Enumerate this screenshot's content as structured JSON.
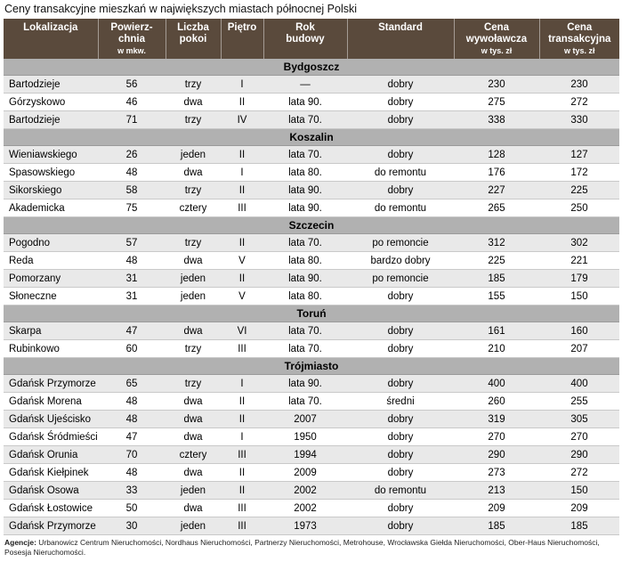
{
  "title": "Ceny transakcyjne mieszkań w największych miastach północnej Polski",
  "colors": {
    "header_bg": "#5a4a3c",
    "section_bg": "#b1b1b1",
    "row_alt_bg": "#e9e9e9",
    "row_bg": "#ffffff"
  },
  "columns": [
    {
      "lines": [
        "Lokalizacja"
      ],
      "sub": ""
    },
    {
      "lines": [
        "Powierz-",
        "chnia"
      ],
      "sub": "w mkw."
    },
    {
      "lines": [
        "Liczba",
        "pokoi"
      ],
      "sub": ""
    },
    {
      "lines": [
        "Piętro"
      ],
      "sub": ""
    },
    {
      "lines": [
        "Rok",
        "budowy"
      ],
      "sub": ""
    },
    {
      "lines": [
        "Standard"
      ],
      "sub": ""
    },
    {
      "lines": [
        "Cena",
        "wywoławcza"
      ],
      "sub": "w tys. zł"
    },
    {
      "lines": [
        "Cena",
        "transakcyjna"
      ],
      "sub": "w tys. zł"
    }
  ],
  "sections": [
    {
      "name": "Bydgoszcz",
      "rows": [
        [
          "Bartodzieje",
          "56",
          "trzy",
          "I",
          "—",
          "dobry",
          "230",
          "230"
        ],
        [
          "Górzyskowo",
          "46",
          "dwa",
          "II",
          "lata 90.",
          "dobry",
          "275",
          "272"
        ],
        [
          "Bartodzieje",
          "71",
          "trzy",
          "IV",
          "lata 70.",
          "dobry",
          "338",
          "330"
        ]
      ]
    },
    {
      "name": "Koszalin",
      "rows": [
        [
          "Wieniawskiego",
          "26",
          "jeden",
          "II",
          "lata 70.",
          "dobry",
          "128",
          "127"
        ],
        [
          "Spasowskiego",
          "48",
          "dwa",
          "I",
          "lata 80.",
          "do remontu",
          "176",
          "172"
        ],
        [
          "Sikorskiego",
          "58",
          "trzy",
          "II",
          "lata 90.",
          "dobry",
          "227",
          "225"
        ],
        [
          "Akademicka",
          "75",
          "cztery",
          "III",
          "lata 90.",
          "do remontu",
          "265",
          "250"
        ]
      ]
    },
    {
      "name": "Szczecin",
      "rows": [
        [
          "Pogodno",
          "57",
          "trzy",
          "II",
          "lata 70.",
          "po remoncie",
          "312",
          "302"
        ],
        [
          "Reda",
          "48",
          "dwa",
          "V",
          "lata 80.",
          "bardzo dobry",
          "225",
          "221"
        ],
        [
          "Pomorzany",
          "31",
          "jeden",
          "II",
          "lata 90.",
          "po remoncie",
          "185",
          "179"
        ],
        [
          "Słoneczne",
          "31",
          "jeden",
          "V",
          "lata 80.",
          "dobry",
          "155",
          "150"
        ]
      ]
    },
    {
      "name": "Toruń",
      "rows": [
        [
          "Skarpa",
          "47",
          "dwa",
          "VI",
          "lata 70.",
          "dobry",
          "161",
          "160"
        ],
        [
          "Rubinkowo",
          "60",
          "trzy",
          "III",
          "lata 70.",
          "dobry",
          "210",
          "207"
        ]
      ]
    },
    {
      "name": "Trójmiasto",
      "rows": [
        [
          "Gdańsk Przymorze",
          "65",
          "trzy",
          "I",
          "lata 90.",
          "dobry",
          "400",
          "400"
        ],
        [
          "Gdańsk Morena",
          "48",
          "dwa",
          "II",
          "lata 70.",
          "średni",
          "260",
          "255"
        ],
        [
          "Gdańsk Ujeścisko",
          "48",
          "dwa",
          "II",
          "2007",
          "dobry",
          "319",
          "305"
        ],
        [
          "Gdańsk Śródmieście",
          "47",
          "dwa",
          "I",
          "1950",
          "dobry",
          "270",
          "270"
        ],
        [
          "Gdańsk Orunia",
          "70",
          "cztery",
          "III",
          "1994",
          "dobry",
          "290",
          "290"
        ],
        [
          "Gdańsk Kiełpinek",
          "48",
          "dwa",
          "II",
          "2009",
          "dobry",
          "273",
          "272"
        ],
        [
          "Gdańsk Osowa",
          "33",
          "jeden",
          "II",
          "2002",
          "do remontu",
          "213",
          "150"
        ],
        [
          "Gdańsk Łostowice",
          "50",
          "dwa",
          "III",
          "2002",
          "dobry",
          "209",
          "209"
        ],
        [
          "Gdańsk Przymorze",
          "30",
          "jeden",
          "III",
          "1973",
          "dobry",
          "185",
          "185"
        ]
      ]
    }
  ],
  "footer": {
    "label": "Agencje:",
    "text": " Urbanowicz Centrum Nieruchomości, Nordhaus Nieruchomości, Partnerzy Nieruchomości, Metrohouse, Wrocławska Giełda Nieruchomości, Ober-Haus Nieruchomości, Posesja Nieruchomości."
  }
}
